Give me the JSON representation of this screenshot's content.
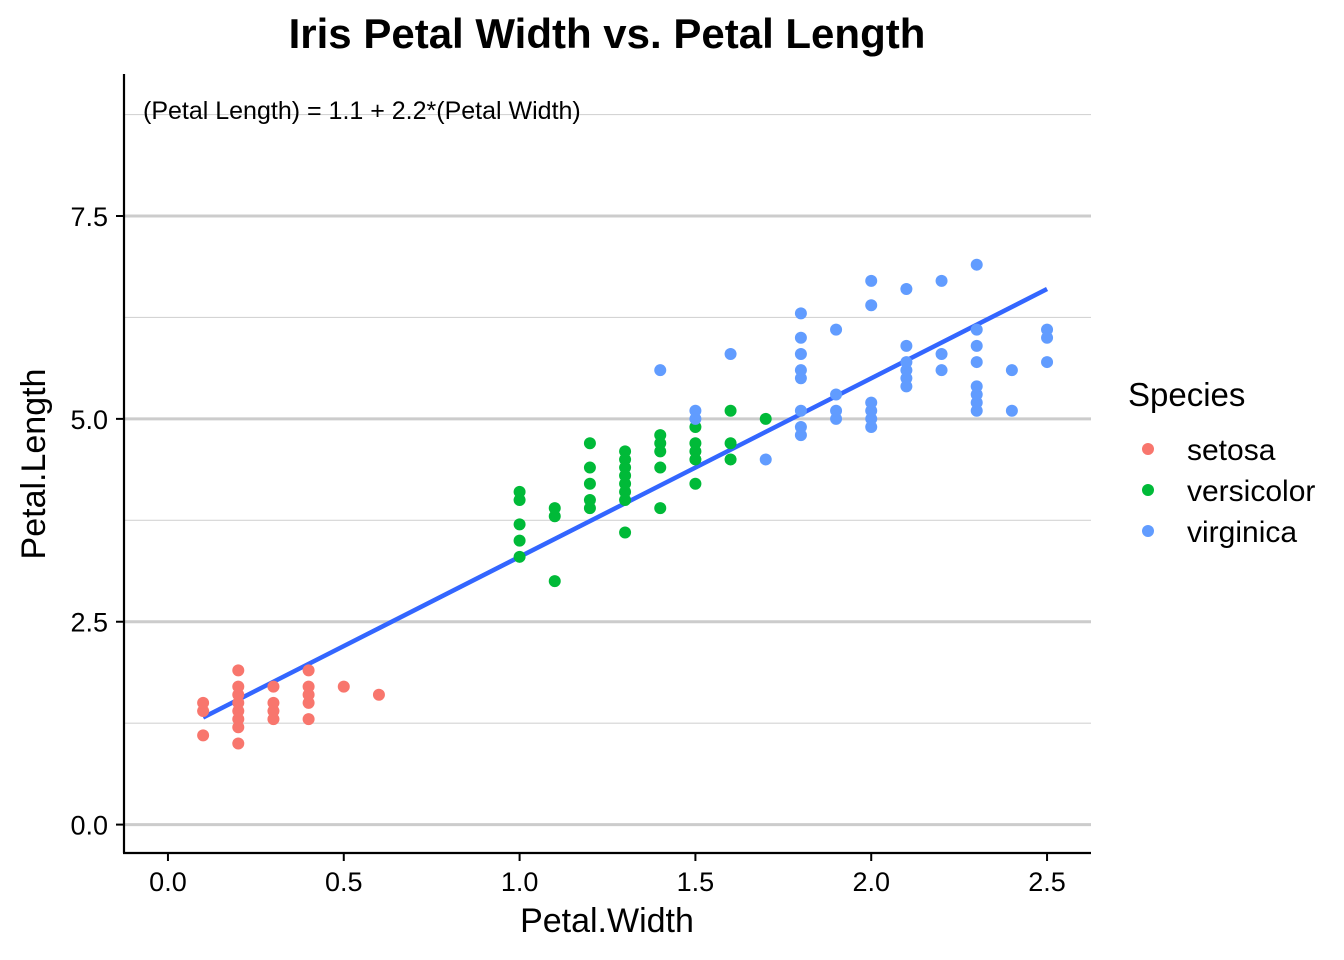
{
  "chart_data": {
    "type": "scatter",
    "title": "Iris Petal Width vs. Petal Length",
    "xlabel": "Petal.Width",
    "ylabel": "Petal.Length",
    "annotation": "(Petal Length) = 1.1 + 2.2*(Petal Width)",
    "xlim": [
      -0.125,
      2.625
    ],
    "ylim": [
      -0.35,
      9.25
    ],
    "x_ticks": [
      0.0,
      0.5,
      1.0,
      1.5,
      2.0,
      2.5
    ],
    "x_tick_labels": [
      "0.0",
      "0.5",
      "1.0",
      "1.5",
      "2.0",
      "2.5"
    ],
    "y_ticks": [
      0.0,
      2.5,
      5.0,
      7.5
    ],
    "y_tick_labels": [
      "0.0",
      "2.5",
      "5.0",
      "7.5"
    ],
    "y_minor_grid": [
      1.25,
      3.75,
      6.25,
      8.75
    ],
    "grid": "horizontal",
    "legend": {
      "title": "Species",
      "position": "right"
    },
    "series": [
      {
        "name": "setosa",
        "color": "#F8766D",
        "points": [
          [
            0.1,
            1.1
          ],
          [
            0.1,
            1.4
          ],
          [
            0.1,
            1.5
          ],
          [
            0.2,
            1.0
          ],
          [
            0.2,
            1.2
          ],
          [
            0.2,
            1.3
          ],
          [
            0.2,
            1.4
          ],
          [
            0.2,
            1.5
          ],
          [
            0.2,
            1.6
          ],
          [
            0.2,
            1.7
          ],
          [
            0.2,
            1.9
          ],
          [
            0.3,
            1.3
          ],
          [
            0.3,
            1.4
          ],
          [
            0.3,
            1.5
          ],
          [
            0.3,
            1.7
          ],
          [
            0.4,
            1.3
          ],
          [
            0.4,
            1.5
          ],
          [
            0.4,
            1.6
          ],
          [
            0.4,
            1.7
          ],
          [
            0.4,
            1.9
          ],
          [
            0.5,
            1.7
          ],
          [
            0.6,
            1.6
          ]
        ]
      },
      {
        "name": "versicolor",
        "color": "#00BA38",
        "points": [
          [
            1.0,
            3.3
          ],
          [
            1.0,
            3.5
          ],
          [
            1.0,
            3.7
          ],
          [
            1.0,
            4.0
          ],
          [
            1.0,
            4.1
          ],
          [
            1.1,
            3.0
          ],
          [
            1.1,
            3.8
          ],
          [
            1.1,
            3.9
          ],
          [
            1.2,
            3.9
          ],
          [
            1.2,
            4.0
          ],
          [
            1.2,
            4.2
          ],
          [
            1.2,
            4.4
          ],
          [
            1.2,
            4.7
          ],
          [
            1.3,
            3.6
          ],
          [
            1.3,
            4.0
          ],
          [
            1.3,
            4.1
          ],
          [
            1.3,
            4.2
          ],
          [
            1.3,
            4.3
          ],
          [
            1.3,
            4.4
          ],
          [
            1.3,
            4.5
          ],
          [
            1.3,
            4.6
          ],
          [
            1.4,
            3.9
          ],
          [
            1.4,
            4.4
          ],
          [
            1.4,
            4.6
          ],
          [
            1.4,
            4.7
          ],
          [
            1.4,
            4.8
          ],
          [
            1.5,
            4.2
          ],
          [
            1.5,
            4.5
          ],
          [
            1.5,
            4.6
          ],
          [
            1.5,
            4.7
          ],
          [
            1.5,
            4.9
          ],
          [
            1.6,
            4.5
          ],
          [
            1.6,
            4.7
          ],
          [
            1.6,
            5.1
          ],
          [
            1.7,
            5.0
          ]
        ]
      },
      {
        "name": "virginica",
        "color": "#619CFF",
        "points": [
          [
            1.4,
            5.6
          ],
          [
            1.5,
            5.0
          ],
          [
            1.5,
            5.1
          ],
          [
            1.6,
            5.8
          ],
          [
            1.7,
            4.5
          ],
          [
            1.8,
            4.8
          ],
          [
            1.8,
            4.9
          ],
          [
            1.8,
            5.1
          ],
          [
            1.8,
            5.5
          ],
          [
            1.8,
            5.6
          ],
          [
            1.8,
            5.8
          ],
          [
            1.8,
            6.0
          ],
          [
            1.8,
            6.3
          ],
          [
            1.9,
            5.0
          ],
          [
            1.9,
            5.1
          ],
          [
            1.9,
            5.3
          ],
          [
            1.9,
            6.1
          ],
          [
            2.0,
            4.9
          ],
          [
            2.0,
            5.0
          ],
          [
            2.0,
            5.1
          ],
          [
            2.0,
            5.2
          ],
          [
            2.0,
            6.4
          ],
          [
            2.0,
            6.7
          ],
          [
            2.1,
            5.4
          ],
          [
            2.1,
            5.5
          ],
          [
            2.1,
            5.6
          ],
          [
            2.1,
            5.7
          ],
          [
            2.1,
            5.9
          ],
          [
            2.1,
            6.6
          ],
          [
            2.2,
            5.6
          ],
          [
            2.2,
            5.8
          ],
          [
            2.2,
            6.7
          ],
          [
            2.3,
            5.1
          ],
          [
            2.3,
            5.2
          ],
          [
            2.3,
            5.3
          ],
          [
            2.3,
            5.4
          ],
          [
            2.3,
            5.7
          ],
          [
            2.3,
            5.9
          ],
          [
            2.3,
            6.1
          ],
          [
            2.3,
            6.9
          ],
          [
            2.4,
            5.1
          ],
          [
            2.4,
            5.6
          ],
          [
            2.5,
            5.7
          ],
          [
            2.5,
            6.0
          ],
          [
            2.5,
            6.1
          ]
        ]
      }
    ],
    "regression": {
      "intercept": 1.1,
      "slope": 2.2,
      "x_range": [
        0.1,
        2.5
      ],
      "color": "#3366FF"
    }
  }
}
